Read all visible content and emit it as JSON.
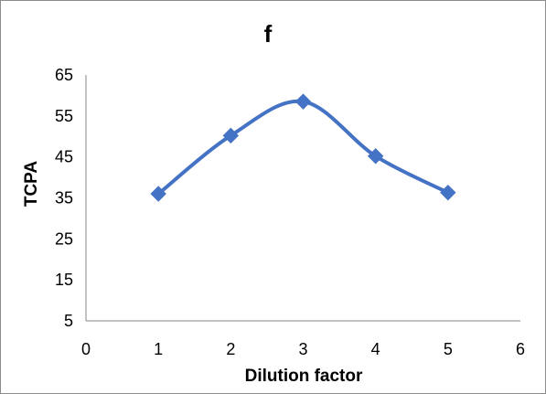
{
  "chart_data": {
    "type": "line",
    "title": "f",
    "xlabel": "Dilution factor",
    "ylabel": "TCPA",
    "x": [
      1,
      2,
      3,
      4,
      5
    ],
    "series": [
      {
        "values": [
          36,
          50.2,
          58.5,
          45.2,
          36.3
        ]
      }
    ],
    "xlim": [
      0,
      6
    ],
    "ylim": [
      5,
      65
    ],
    "xticks": [
      "0",
      "1",
      "2",
      "3",
      "4",
      "5",
      "6"
    ],
    "yticks": [
      "5",
      "15",
      "25",
      "35",
      "45",
      "55",
      "65"
    ],
    "smooth": true,
    "marker": "diamond",
    "grid": false,
    "legend": "none",
    "colors": {
      "series": "#4472C4",
      "axis": "#868686"
    }
  }
}
